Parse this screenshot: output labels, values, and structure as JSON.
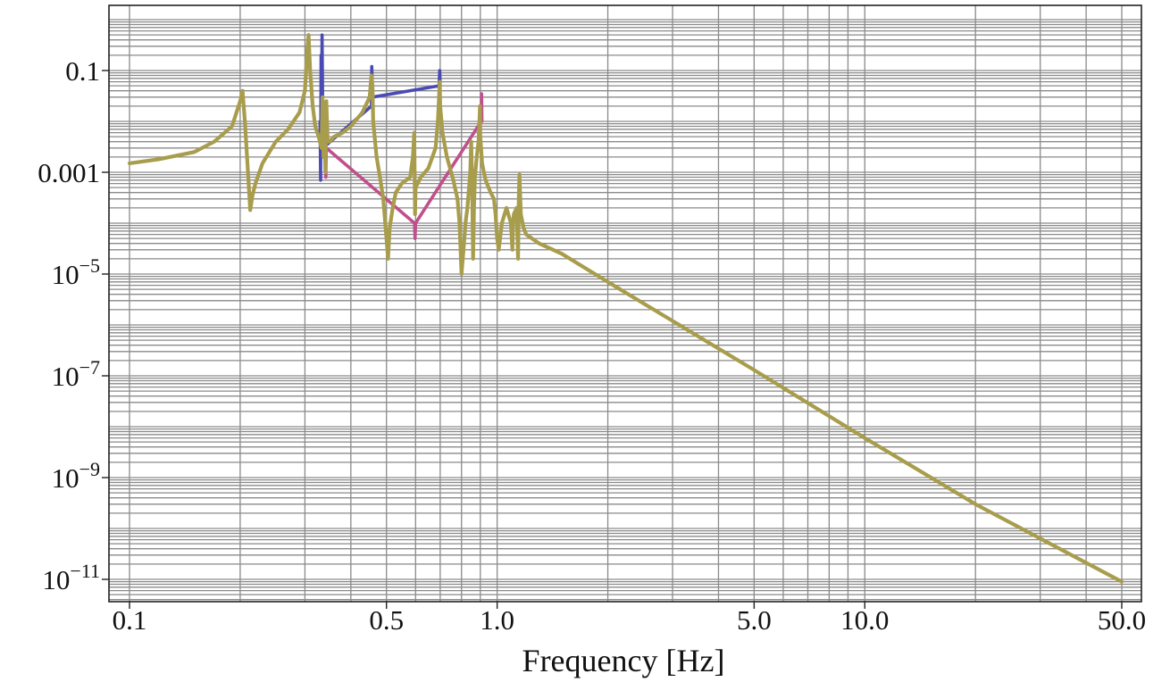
{
  "chart_data": {
    "type": "line",
    "title": "",
    "xlabel": "Frequency [Hz]",
    "ylabel": "",
    "x_scale": "log",
    "y_scale": "log",
    "xlim": [
      0.1,
      50
    ],
    "ylim": [
      1e-11,
      1
    ],
    "grid": true,
    "x_ticks": [
      {
        "value": 0.1,
        "label": "0.1"
      },
      {
        "value": 0.5,
        "label": "0.5"
      },
      {
        "value": 1.0,
        "label": "1.0"
      },
      {
        "value": 5.0,
        "label": "5.0"
      },
      {
        "value": 10.0,
        "label": "10.0"
      },
      {
        "value": 50.0,
        "label": "50.0"
      }
    ],
    "y_ticks": [
      {
        "value": 0.1,
        "label": "0.1",
        "mantissa": "0.1",
        "exponent": ""
      },
      {
        "value": 0.001,
        "label": "0.001",
        "mantissa": "0.001",
        "exponent": ""
      },
      {
        "value": 1e-05,
        "label": "10^-5",
        "mantissa": "10",
        "exponent": "−5"
      },
      {
        "value": 1e-07,
        "label": "10^-7",
        "mantissa": "10",
        "exponent": "−7"
      },
      {
        "value": 1e-09,
        "label": "10^-9",
        "mantissa": "10",
        "exponent": "−9"
      },
      {
        "value": 1e-11,
        "label": "10^-11",
        "mantissa": "10",
        "exponent": "−11"
      }
    ],
    "series": [
      {
        "color": "#4a4ab4",
        "points": [
          [
            0.33,
            0.01
          ],
          [
            0.331,
            0.0007
          ],
          [
            0.332,
            0.2
          ],
          [
            0.333,
            0.02
          ],
          [
            0.334,
            0.5
          ],
          [
            0.336,
            0.003
          ],
          [
            0.455,
            0.02
          ],
          [
            0.456,
            0.12
          ],
          [
            0.458,
            0.03
          ],
          [
            0.695,
            0.05
          ],
          [
            0.698,
            0.1
          ],
          [
            0.7,
            0.05
          ]
        ]
      },
      {
        "color": "#c0508c",
        "points": [
          [
            0.34,
            0.02
          ],
          [
            0.342,
            0.0008
          ],
          [
            0.343,
            0.003
          ],
          [
            0.596,
            0.0001
          ],
          [
            0.598,
            5e-05
          ],
          [
            0.6,
            0.0001
          ],
          [
            0.905,
            0.01
          ],
          [
            0.907,
            0.035
          ],
          [
            0.909,
            0.01
          ]
        ]
      },
      {
        "color": "#a89d4c",
        "points": [
          [
            0.1,
            0.0015
          ],
          [
            0.12,
            0.0018
          ],
          [
            0.15,
            0.0025
          ],
          [
            0.17,
            0.004
          ],
          [
            0.19,
            0.008
          ],
          [
            0.2,
            0.025
          ],
          [
            0.203,
            0.04
          ],
          [
            0.206,
            0.01
          ],
          [
            0.21,
            0.001
          ],
          [
            0.213,
            0.00018
          ],
          [
            0.216,
            0.00035
          ],
          [
            0.22,
            0.0006
          ],
          [
            0.23,
            0.0015
          ],
          [
            0.25,
            0.004
          ],
          [
            0.27,
            0.007
          ],
          [
            0.29,
            0.015
          ],
          [
            0.3,
            0.04
          ],
          [
            0.305,
            0.3
          ],
          [
            0.307,
            0.5
          ],
          [
            0.31,
            0.1
          ],
          [
            0.315,
            0.02
          ],
          [
            0.32,
            0.008
          ],
          [
            0.327,
            0.005
          ],
          [
            0.333,
            0.003
          ],
          [
            0.335,
            0.03
          ],
          [
            0.337,
            0.002
          ],
          [
            0.339,
            0.015
          ],
          [
            0.341,
            0.001
          ],
          [
            0.343,
            0.025
          ],
          [
            0.346,
            0.004
          ],
          [
            0.35,
            0.004
          ],
          [
            0.36,
            0.005
          ],
          [
            0.38,
            0.006
          ],
          [
            0.4,
            0.008
          ],
          [
            0.43,
            0.015
          ],
          [
            0.45,
            0.03
          ],
          [
            0.455,
            0.08
          ],
          [
            0.458,
            0.05
          ],
          [
            0.46,
            0.01
          ],
          [
            0.47,
            0.002
          ],
          [
            0.48,
            0.0008
          ],
          [
            0.49,
            0.0003
          ],
          [
            0.5,
            5e-05
          ],
          [
            0.505,
            2e-05
          ],
          [
            0.51,
            8e-05
          ],
          [
            0.52,
            0.0002
          ],
          [
            0.53,
            0.0004
          ],
          [
            0.55,
            0.0006
          ],
          [
            0.58,
            0.0008
          ],
          [
            0.59,
            0.002
          ],
          [
            0.595,
            0.006
          ],
          [
            0.598,
            0.00015
          ],
          [
            0.6,
            0.0005
          ],
          [
            0.62,
            0.0008
          ],
          [
            0.65,
            0.0012
          ],
          [
            0.68,
            0.003
          ],
          [
            0.69,
            0.01
          ],
          [
            0.695,
            0.03
          ],
          [
            0.698,
            0.06
          ],
          [
            0.7,
            0.02
          ],
          [
            0.71,
            0.006
          ],
          [
            0.73,
            0.002
          ],
          [
            0.76,
            0.0007
          ],
          [
            0.78,
            0.0003
          ],
          [
            0.79,
            0.0001
          ],
          [
            0.8,
            1e-05
          ],
          [
            0.81,
            3e-05
          ],
          [
            0.82,
            0.0001
          ],
          [
            0.83,
            0.0002
          ],
          [
            0.845,
            0.001
          ],
          [
            0.85,
            0.004
          ],
          [
            0.855,
            0.0006
          ],
          [
            0.86,
            2e-05
          ],
          [
            0.865,
            0.0002
          ],
          [
            0.87,
            0.0008
          ],
          [
            0.88,
            0.002
          ],
          [
            0.89,
            0.004
          ],
          [
            0.895,
            0.01
          ],
          [
            0.898,
            0.02
          ],
          [
            0.9,
            0.005
          ],
          [
            0.91,
            0.0015
          ],
          [
            0.93,
            0.0007
          ],
          [
            0.96,
            0.0004
          ],
          [
            0.98,
            0.0003
          ],
          [
            0.99,
            0.00015
          ],
          [
            1.0,
            5e-05
          ],
          [
            1.01,
            3e-05
          ],
          [
            1.03,
            0.0001
          ],
          [
            1.06,
            0.0002
          ],
          [
            1.09,
            0.0001
          ],
          [
            1.1,
            3e-05
          ],
          [
            1.105,
            0.0001
          ],
          [
            1.11,
            0.00015
          ],
          [
            1.13,
            0.0002
          ],
          [
            1.14,
            2e-05
          ],
          [
            1.145,
            0.0003
          ],
          [
            1.15,
            0.0009
          ],
          [
            1.16,
            0.00015
          ],
          [
            1.18,
            8e-05
          ],
          [
            1.2,
            6e-05
          ],
          [
            1.3,
            4e-05
          ],
          [
            1.5,
            2.5e-05
          ],
          [
            2.0,
            7e-06
          ],
          [
            3.0,
            1.2e-06
          ],
          [
            5.0,
            1.3e-07
          ],
          [
            10.0,
            6e-09
          ],
          [
            20.0,
            3e-10
          ],
          [
            50.0,
            9e-12
          ]
        ]
      }
    ]
  }
}
